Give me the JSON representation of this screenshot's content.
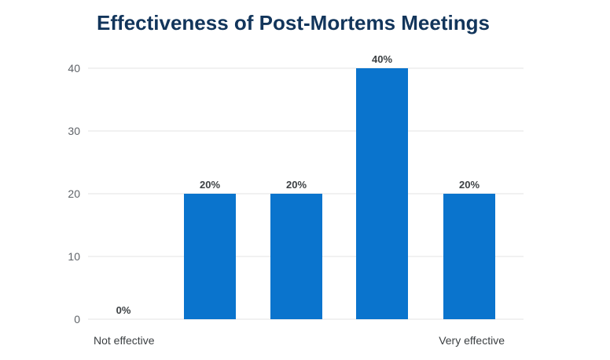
{
  "chart_data": {
    "type": "bar",
    "title": "Effectiveness of Post-Mortems Meetings",
    "categories": [
      "Not effective",
      "",
      "",
      "",
      "Very effective"
    ],
    "values": [
      0,
      20,
      20,
      40,
      20
    ],
    "data_labels": [
      "0%",
      "20%",
      "20%",
      "40%",
      "20%"
    ],
    "ylim": [
      0,
      40
    ],
    "yticks": [
      0,
      10,
      20,
      30,
      40
    ],
    "xlabel": "",
    "ylabel": "",
    "grid": true,
    "legend": "none"
  },
  "colors": {
    "bar": "#0a74cd",
    "title": "#12355b",
    "grid": "#e3e3e3"
  }
}
